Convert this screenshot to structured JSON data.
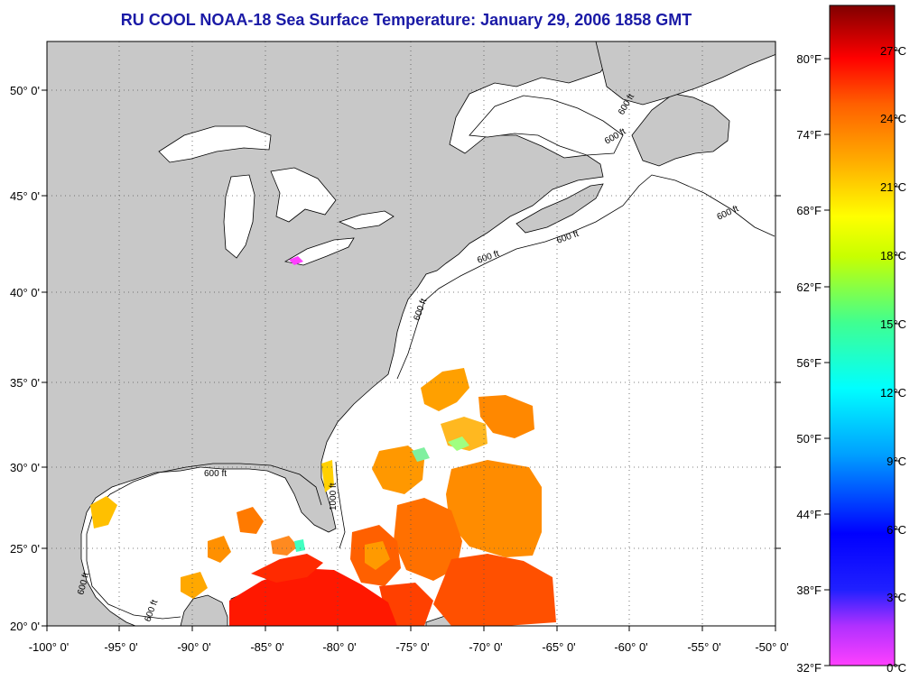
{
  "title": "RU COOL  NOAA-18  Sea Surface Temperature:  January 29, 2006 1858 GMT",
  "map": {
    "lat_labels": [
      "50° 0'",
      "45° 0'",
      "40° 0'",
      "35° 0'",
      "30° 0'",
      "25° 0'",
      "20° 0'"
    ],
    "lon_labels": [
      "-100° 0'",
      "-95° 0'",
      "-90° 0'",
      "-85° 0'",
      "-80° 0'",
      "-75° 0'",
      "-70° 0'",
      "-65° 0'",
      "-60° 0'",
      "-55° 0'",
      "-50° 0'"
    ],
    "contour_labels": [
      "600 ft",
      "600 ft",
      "600 ft",
      "600 ft",
      "600 ft",
      "600 ft",
      "600 ft",
      "600 ft",
      "1000 ft",
      "600 ft"
    ],
    "colors": {
      "land": "#c8c8c8",
      "water": "#ffffff",
      "grid": "#555555"
    }
  },
  "colorbar": {
    "fahrenheit_labels": [
      "80°F",
      "74°F",
      "68°F",
      "62°F",
      "56°F",
      "50°F",
      "44°F",
      "38°F",
      "32°F"
    ],
    "celsius_labels": [
      "27°C",
      "24°C",
      "21°C",
      "18°C",
      "15°C",
      "12°C",
      "9°C",
      "6°C",
      "3°C",
      "0°C"
    ],
    "range_c": [
      0,
      28.5
    ],
    "stops": [
      "#ff40ff",
      "#9a30ff",
      "#0000ff",
      "#00a0ff",
      "#00ffff",
      "#40ff80",
      "#c8ff00",
      "#ffff00",
      "#ffa000",
      "#ff6000",
      "#ff0000",
      "#c00000",
      "#800000"
    ]
  }
}
